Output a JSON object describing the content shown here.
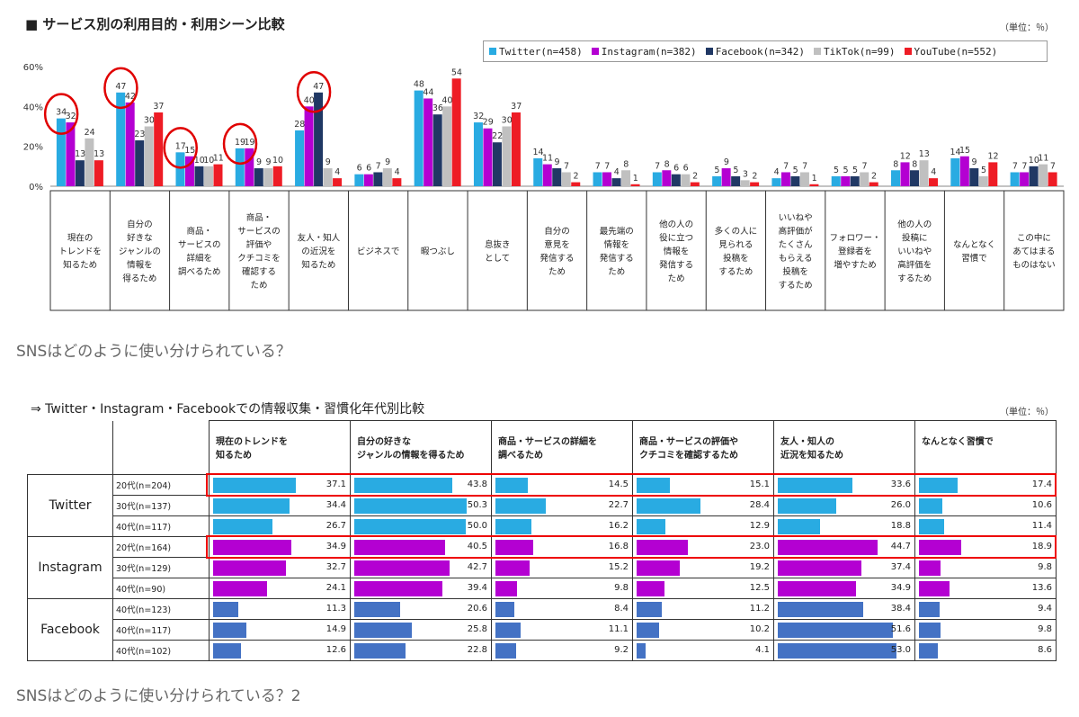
{
  "section1": {
    "title": "■ サービス別の利用目的・利用シーン比較",
    "unit": "（単位：％）",
    "caption": "SNSはどのように使い分けられている？"
  },
  "section2": {
    "title": "⇒ Twitter・Instagram・Facebookでの情報収集・習慣化年代別比較",
    "unit": "（単位：％）",
    "caption": "SNSはどのように使い分けられている？2"
  },
  "colors": {
    "twitter": "#29abe2",
    "instagram": "#b400d2",
    "facebook": "#203864",
    "tiktok": "#c0c0c0",
    "youtube": "#ee1c25",
    "fb_table": "#4472c4",
    "highlight": "#e00000"
  },
  "chart_data": [
    {
      "type": "bar",
      "title": "サービス別の利用目的・利用シーン比較",
      "ylim": [
        0,
        60
      ],
      "yticks": [
        "0%",
        "20%",
        "40%",
        "60%"
      ],
      "grid": false,
      "legend": "top-right",
      "categories": [
        "現在の\nトレンドを\n知るため",
        "自分の\n好きな\nジャンルの\n情報を\n得るため",
        "商品・\nサービスの\n詳細を\n調べるため",
        "商品・\nサービスの\n評価や\nクチコミを\n確認する\nため",
        "友人・知人\nの近況を\n知るため",
        "ビジネスで",
        "暇つぶし",
        "息抜き\nとして",
        "自分の\n意見を\n発信する\nため",
        "最先端の\n情報を\n発信する\nため",
        "他の人の\n役に立つ\n情報を\n発信する\nため",
        "多くの人に\n見られる\n投稿を\nするため",
        "いいねや\n高評価が\nたくさん\nもらえる\n投稿を\nするため",
        "フォロワー・\n登録者を\n増やすため",
        "他の人の\n投稿に\nいいねや\n高評価を\nするため",
        "なんとなく\n習慣で",
        "この中に\nあてはまる\nものはない"
      ],
      "series": [
        {
          "name": "Twitter(n=458)",
          "values": [
            34,
            47,
            17,
            19,
            28,
            6,
            48,
            32,
            14,
            7,
            7,
            5,
            4,
            5,
            8,
            14,
            7
          ]
        },
        {
          "name": "Instagram(n=382)",
          "values": [
            32,
            42,
            15,
            19,
            40,
            6,
            44,
            29,
            11,
            7,
            8,
            9,
            7,
            5,
            12,
            15,
            7
          ]
        },
        {
          "name": "Facebook(n=342)",
          "values": [
            13,
            23,
            10,
            9,
            47,
            7,
            36,
            22,
            9,
            4,
            6,
            5,
            5,
            5,
            8,
            9,
            10
          ]
        },
        {
          "name": "TikTok(n=99)",
          "values": [
            24,
            30,
            10,
            9,
            9,
            9,
            40,
            30,
            7,
            8,
            6,
            3,
            7,
            7,
            13,
            5,
            11
          ]
        },
        {
          "name": "YouTube(n=552)",
          "values": [
            13,
            37,
            11,
            10,
            4,
            4,
            54,
            37,
            2,
            1,
            2,
            2,
            1,
            2,
            4,
            12,
            7
          ]
        }
      ]
    },
    {
      "type": "table",
      "title": "Twitter・Instagram・Facebookでの情報収集・習慣化年代別比較",
      "columns": [
        "現在のトレンドを\n知るため",
        "自分の好きな\nジャンルの情報を得るため",
        "商品・サービスの詳細を\n調べるため",
        "商品・サービスの評価や\nクチコミを確認するため",
        "友人・知人の\n近況を知るため",
        "なんとなく習慣で"
      ],
      "groups": [
        {
          "service": "Twitter",
          "rows": [
            {
              "age": "20代(n=204)",
              "values": [
                37.1,
                43.8,
                14.5,
                15.1,
                33.6,
                17.4
              ]
            },
            {
              "age": "30代(n=137)",
              "values": [
                34.4,
                50.3,
                22.7,
                28.4,
                26.0,
                10.6
              ]
            },
            {
              "age": "40代(n=117)",
              "values": [
                26.7,
                50.0,
                16.2,
                12.9,
                18.8,
                11.4
              ]
            }
          ]
        },
        {
          "service": "Instagram",
          "rows": [
            {
              "age": "20代(n=164)",
              "values": [
                34.9,
                40.5,
                16.8,
                23.0,
                44.7,
                18.9
              ]
            },
            {
              "age": "30代(n=129)",
              "values": [
                32.7,
                42.7,
                15.2,
                19.2,
                37.4,
                9.8
              ]
            },
            {
              "age": "40代(n=90)",
              "values": [
                24.1,
                39.4,
                9.8,
                12.5,
                34.9,
                13.6
              ]
            }
          ]
        },
        {
          "service": "Facebook",
          "rows": [
            {
              "age": "40代(n=123)",
              "values": [
                11.3,
                20.6,
                8.4,
                11.2,
                38.4,
                9.4
              ]
            },
            {
              "age": "40代(n=117)",
              "values": [
                14.9,
                25.8,
                11.1,
                10.2,
                51.6,
                9.8
              ]
            },
            {
              "age": "40代(n=102)",
              "values": [
                12.6,
                22.8,
                9.2,
                4.1,
                53.0,
                8.6
              ]
            }
          ]
        }
      ]
    }
  ]
}
